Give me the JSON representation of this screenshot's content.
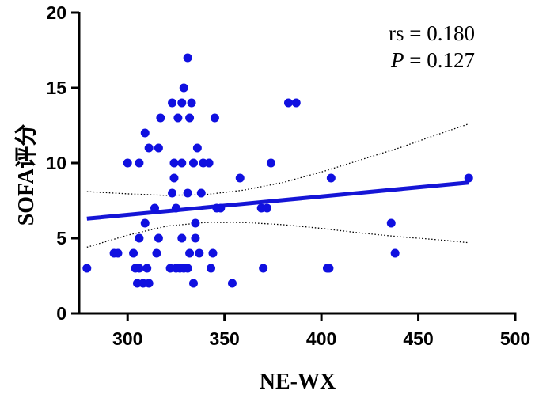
{
  "chart_data": {
    "type": "scatter",
    "xlabel": "NE-WX",
    "ylabel": "SOFA评分",
    "xlim": [
      275,
      500
    ],
    "ylim": [
      0,
      20
    ],
    "x_ticks": [
      "300",
      "350",
      "400",
      "450",
      "500"
    ],
    "y_ticks": [
      "0",
      "5",
      "10",
      "15",
      "20"
    ],
    "grid": false,
    "marker_color": "#1010e0",
    "line_color": "#1515d6",
    "annotation": {
      "rs_label": "rs = 0.180",
      "p_symbol": "P",
      "p_value": " = 0.127"
    },
    "regression": {
      "x": [
        279,
        476
      ],
      "y": [
        6.3,
        8.7
      ]
    },
    "confidence_band": {
      "upper": {
        "x": [
          279,
          300,
          320,
          340,
          360,
          380,
          400,
          420,
          440,
          460,
          476
        ],
        "y": [
          8.1,
          7.95,
          7.85,
          7.9,
          8.2,
          8.7,
          9.4,
          10.2,
          11.0,
          11.9,
          12.6
        ]
      },
      "lower": {
        "x": [
          279,
          300,
          320,
          340,
          360,
          380,
          400,
          420,
          440,
          460,
          476
        ],
        "y": [
          4.4,
          5.2,
          5.8,
          6.05,
          6.05,
          5.9,
          5.65,
          5.35,
          5.1,
          4.9,
          4.7
        ]
      }
    },
    "points": [
      {
        "x": 279,
        "y": 3
      },
      {
        "x": 293,
        "y": 4
      },
      {
        "x": 295,
        "y": 4
      },
      {
        "x": 300,
        "y": 10
      },
      {
        "x": 303,
        "y": 4
      },
      {
        "x": 304,
        "y": 3
      },
      {
        "x": 305,
        "y": 2
      },
      {
        "x": 306,
        "y": 3
      },
      {
        "x": 306,
        "y": 10
      },
      {
        "x": 306,
        "y": 5
      },
      {
        "x": 308,
        "y": 2
      },
      {
        "x": 309,
        "y": 12
      },
      {
        "x": 309,
        "y": 6
      },
      {
        "x": 310,
        "y": 3
      },
      {
        "x": 311,
        "y": 11
      },
      {
        "x": 311,
        "y": 2
      },
      {
        "x": 314,
        "y": 7
      },
      {
        "x": 315,
        "y": 4
      },
      {
        "x": 316,
        "y": 5
      },
      {
        "x": 316,
        "y": 11
      },
      {
        "x": 317,
        "y": 13
      },
      {
        "x": 322,
        "y": 3
      },
      {
        "x": 323,
        "y": 14
      },
      {
        "x": 323,
        "y": 8
      },
      {
        "x": 324,
        "y": 10
      },
      {
        "x": 324,
        "y": 9
      },
      {
        "x": 325,
        "y": 3
      },
      {
        "x": 325,
        "y": 7
      },
      {
        "x": 326,
        "y": 13
      },
      {
        "x": 327,
        "y": 3
      },
      {
        "x": 328,
        "y": 10
      },
      {
        "x": 328,
        "y": 14
      },
      {
        "x": 328,
        "y": 5
      },
      {
        "x": 329,
        "y": 15
      },
      {
        "x": 329,
        "y": 3
      },
      {
        "x": 331,
        "y": 17
      },
      {
        "x": 331,
        "y": 8
      },
      {
        "x": 331,
        "y": 3
      },
      {
        "x": 332,
        "y": 4
      },
      {
        "x": 332,
        "y": 13
      },
      {
        "x": 333,
        "y": 14
      },
      {
        "x": 334,
        "y": 2
      },
      {
        "x": 334,
        "y": 10
      },
      {
        "x": 335,
        "y": 5
      },
      {
        "x": 335,
        "y": 6
      },
      {
        "x": 336,
        "y": 11
      },
      {
        "x": 337,
        "y": 4
      },
      {
        "x": 338,
        "y": 8
      },
      {
        "x": 339,
        "y": 10
      },
      {
        "x": 342,
        "y": 10
      },
      {
        "x": 343,
        "y": 3
      },
      {
        "x": 344,
        "y": 4
      },
      {
        "x": 345,
        "y": 13
      },
      {
        "x": 346,
        "y": 7
      },
      {
        "x": 348,
        "y": 7
      },
      {
        "x": 354,
        "y": 2
      },
      {
        "x": 358,
        "y": 9
      },
      {
        "x": 369,
        "y": 7
      },
      {
        "x": 370,
        "y": 3
      },
      {
        "x": 372,
        "y": 7
      },
      {
        "x": 374,
        "y": 10
      },
      {
        "x": 383,
        "y": 14
      },
      {
        "x": 387,
        "y": 14
      },
      {
        "x": 403,
        "y": 3
      },
      {
        "x": 404,
        "y": 3
      },
      {
        "x": 405,
        "y": 9
      },
      {
        "x": 436,
        "y": 6
      },
      {
        "x": 438,
        "y": 4
      },
      {
        "x": 476,
        "y": 9
      }
    ]
  }
}
